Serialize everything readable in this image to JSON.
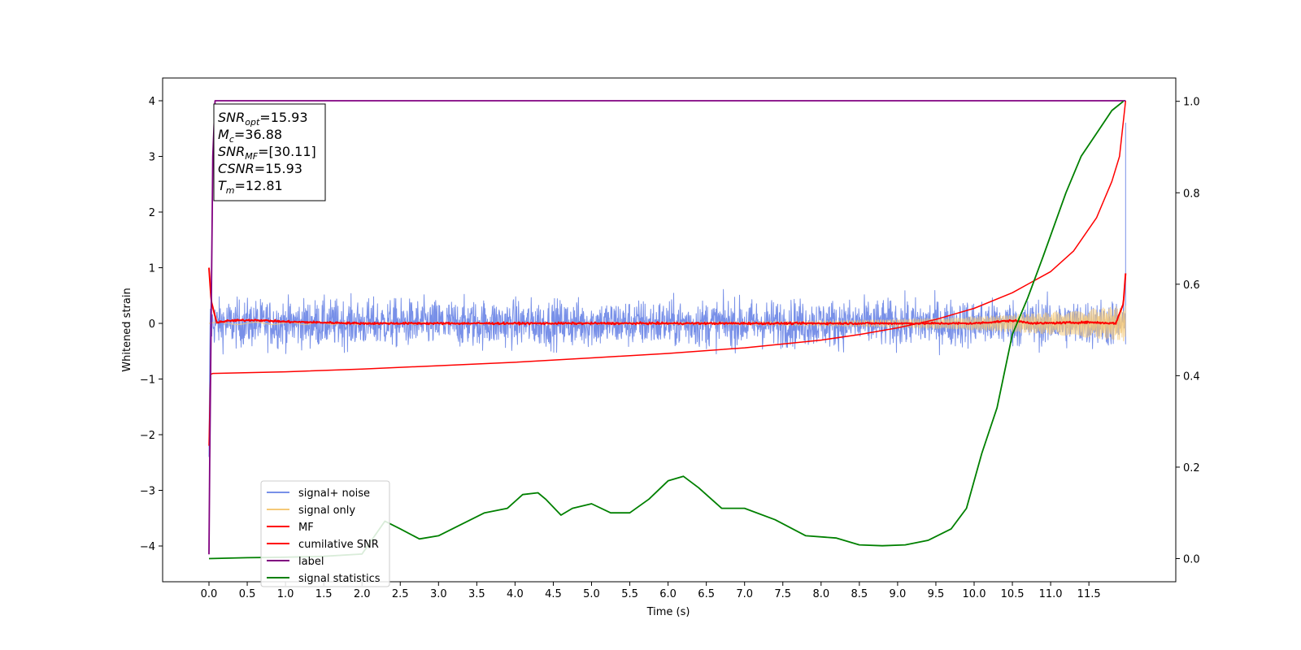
{
  "chart_data": {
    "type": "line",
    "xlabel": "Time (s)",
    "ylabel": "Whitened strain",
    "xlim": [
      -0.6,
      12.6
    ],
    "ylim": [
      -4.6,
      4.4
    ],
    "y2lim": [
      -0.05,
      1.05
    ],
    "x_ticks": [
      "0.0",
      "0.5",
      "1.0",
      "1.5",
      "2.0",
      "2.5",
      "3.0",
      "3.5",
      "4.0",
      "4.5",
      "5.0",
      "5.5",
      "6.0",
      "6.5",
      "7.0",
      "7.5",
      "8.0",
      "8.5",
      "9.0",
      "9.5",
      "10.0",
      "10.5",
      "11.0",
      "11.5"
    ],
    "y_ticks": [
      "4",
      "3",
      "2",
      "1",
      "0",
      "−1",
      "−2",
      "−3",
      "−4"
    ],
    "y2_ticks": [
      "1.0",
      "0.8",
      "0.6",
      "0.4",
      "0.2",
      "0.0"
    ],
    "grid": false,
    "legend_position": "lower-left",
    "annotation": [
      {
        "sym": "SNR",
        "sub": "opt",
        "value": "=15.93"
      },
      {
        "sym": "M",
        "sub": "c",
        "value": "=36.88"
      },
      {
        "sym": "SNR",
        "sub": "MF",
        "value": "=[30.11]"
      },
      {
        "sym": "CSNR",
        "sub": "",
        "value": "=15.93"
      },
      {
        "sym": "T",
        "sub": "m",
        "value": "=12.81"
      }
    ],
    "series": [
      {
        "name": "signal+ noise",
        "color": "#7890e8",
        "axis": "left",
        "description_values": {
          "x_range": [
            0.0,
            11.98
          ],
          "amplitude_range": [
            -0.9,
            1.1
          ],
          "end_spike": 3.6
        }
      },
      {
        "name": "signal only",
        "color": "#f5c978",
        "axis": "left",
        "description_values": {
          "x_range": [
            0.0,
            11.98
          ],
          "amplitude_end": 0.3
        }
      },
      {
        "name": "MF",
        "color": "#ff0000",
        "axis": "left",
        "x": [
          0.0,
          0.03,
          0.1,
          0.3,
          0.6,
          1.0,
          2.0,
          3.0,
          4.0,
          5.0,
          6.0,
          7.0,
          8.0,
          9.0,
          10.0,
          10.5,
          10.8,
          11.5,
          11.85,
          11.95,
          11.98
        ],
        "y": [
          1.0,
          0.4,
          0.02,
          0.05,
          0.06,
          0.03,
          0.0,
          0.0,
          0.0,
          0.0,
          0.0,
          0.0,
          0.0,
          0.0,
          0.0,
          0.05,
          0.0,
          0.02,
          0.0,
          0.35,
          0.9
        ]
      },
      {
        "name": "cumilative SNR",
        "color": "#ff0000",
        "axis": "left",
        "x": [
          0.0,
          0.02,
          0.05,
          1.0,
          2.0,
          3.0,
          4.0,
          5.0,
          6.0,
          7.0,
          8.0,
          8.5,
          9.0,
          9.5,
          10.0,
          10.5,
          11.0,
          11.3,
          11.6,
          11.8,
          11.9,
          11.98
        ],
        "y": [
          -2.2,
          -0.92,
          -0.9,
          -0.87,
          -0.82,
          -0.76,
          -0.7,
          -0.62,
          -0.54,
          -0.44,
          -0.3,
          -0.2,
          -0.08,
          0.07,
          0.27,
          0.55,
          0.93,
          1.3,
          1.9,
          2.55,
          3.0,
          4.0
        ]
      },
      {
        "name": "label",
        "color": "#800080",
        "axis": "left",
        "x": [
          0.0,
          0.01,
          0.05,
          0.08,
          11.9,
          11.98
        ],
        "y": [
          -4.15,
          -2.5,
          3.0,
          4.0,
          4.0,
          4.0
        ]
      },
      {
        "name": "signal statistics",
        "color": "#008000",
        "axis": "right",
        "x": [
          0.0,
          0.5,
          1.0,
          1.5,
          2.0,
          2.3,
          2.5,
          2.75,
          3.0,
          3.3,
          3.6,
          3.9,
          4.1,
          4.3,
          4.4,
          4.6,
          4.75,
          5.0,
          5.25,
          5.5,
          5.75,
          6.0,
          6.2,
          6.4,
          6.7,
          7.0,
          7.4,
          7.8,
          8.2,
          8.5,
          8.8,
          9.1,
          9.4,
          9.7,
          9.9,
          10.1,
          10.3,
          10.5,
          10.7,
          10.9,
          11.2,
          11.4,
          11.6,
          11.8,
          11.95
        ],
        "y": [
          0.0,
          0.002,
          0.003,
          0.005,
          0.01,
          0.082,
          0.065,
          0.043,
          0.05,
          0.075,
          0.1,
          0.11,
          0.14,
          0.144,
          0.13,
          0.095,
          0.11,
          0.12,
          0.1,
          0.1,
          0.13,
          0.17,
          0.18,
          0.155,
          0.11,
          0.11,
          0.085,
          0.05,
          0.045,
          0.03,
          0.028,
          0.03,
          0.04,
          0.065,
          0.11,
          0.23,
          0.33,
          0.49,
          0.57,
          0.66,
          0.8,
          0.88,
          0.93,
          0.98,
          1.0
        ]
      }
    ]
  }
}
